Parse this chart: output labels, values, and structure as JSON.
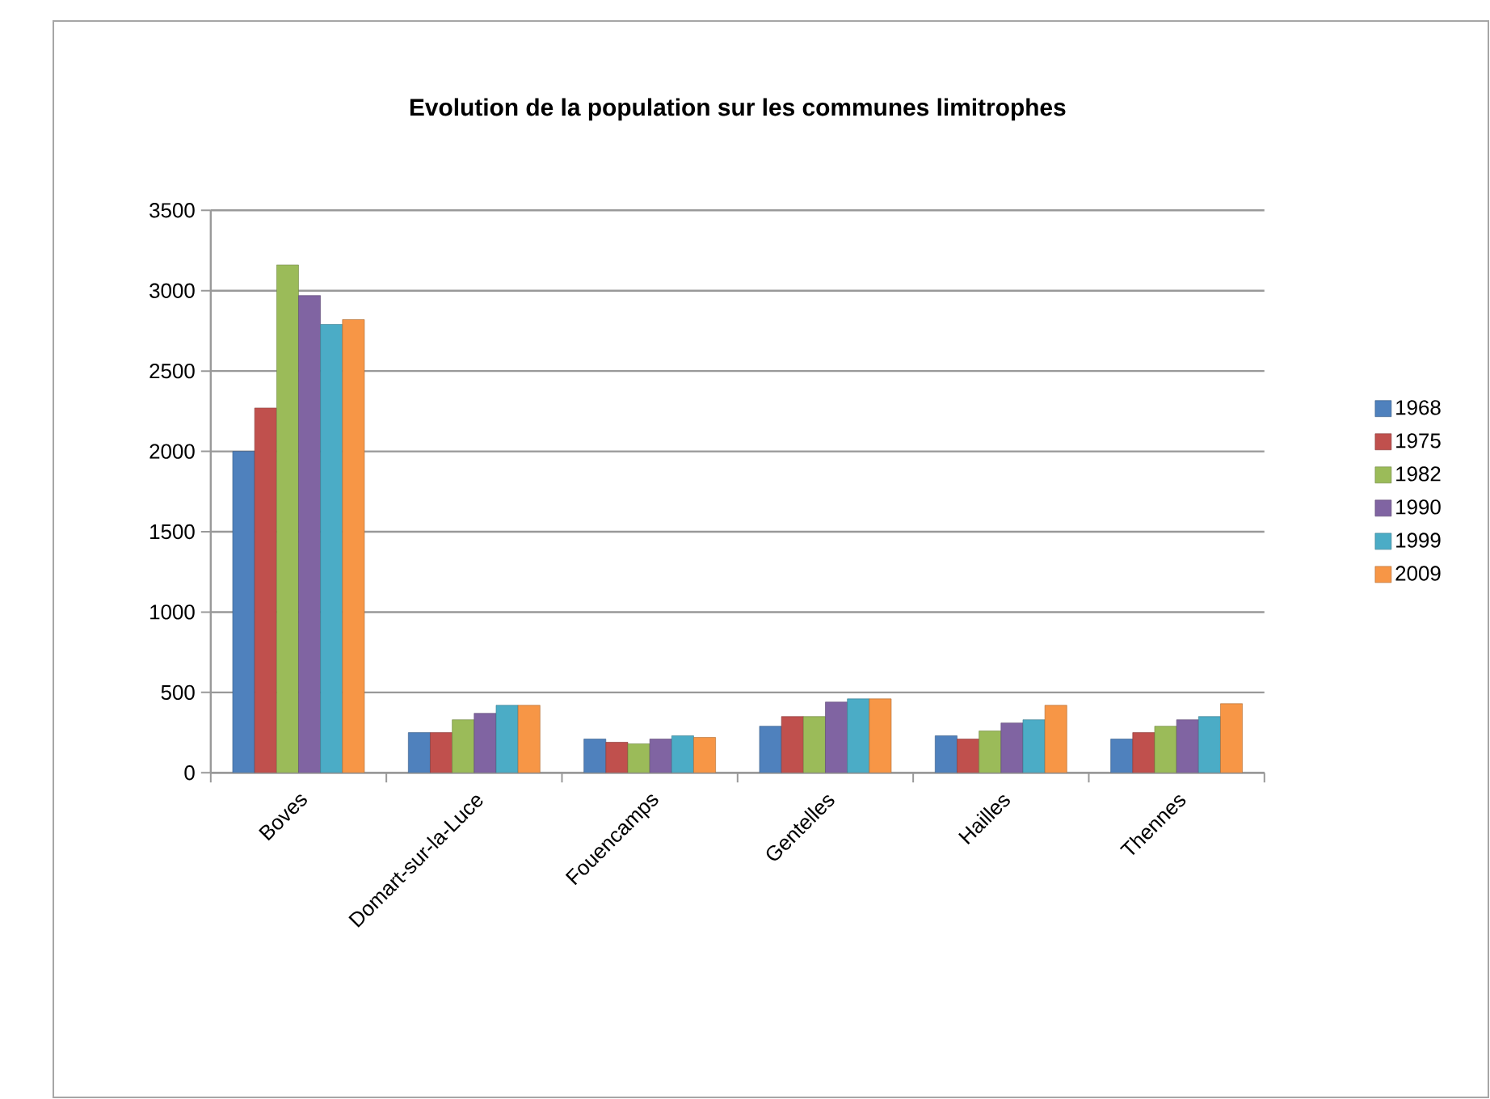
{
  "chart_data": {
    "type": "bar",
    "title": "Evolution de la population sur les communes limitrophes",
    "categories": [
      "Boves",
      "Domart-sur-la-Luce",
      "Fouencamps",
      "Gentelles",
      "Hailles",
      "Thennes"
    ],
    "series": [
      {
        "name": "1968",
        "color": "#4f81bd",
        "values": [
          2000,
          250,
          210,
          290,
          230,
          210
        ]
      },
      {
        "name": "1975",
        "color": "#c0504d",
        "values": [
          2270,
          250,
          190,
          350,
          210,
          250
        ]
      },
      {
        "name": "1982",
        "color": "#9bbb59",
        "values": [
          3160,
          330,
          180,
          350,
          260,
          290
        ]
      },
      {
        "name": "1990",
        "color": "#8064a2",
        "values": [
          2970,
          370,
          210,
          440,
          310,
          330
        ]
      },
      {
        "name": "1999",
        "color": "#4bacc6",
        "values": [
          2790,
          420,
          230,
          460,
          330,
          350
        ]
      },
      {
        "name": "2009",
        "color": "#f79646",
        "values": [
          2820,
          420,
          220,
          460,
          420,
          430
        ]
      }
    ],
    "ylim": [
      0,
      3500
    ],
    "yticks": [
      0,
      500,
      1000,
      1500,
      2000,
      2500,
      3000,
      3500
    ],
    "grid": "y",
    "legend": "right"
  }
}
